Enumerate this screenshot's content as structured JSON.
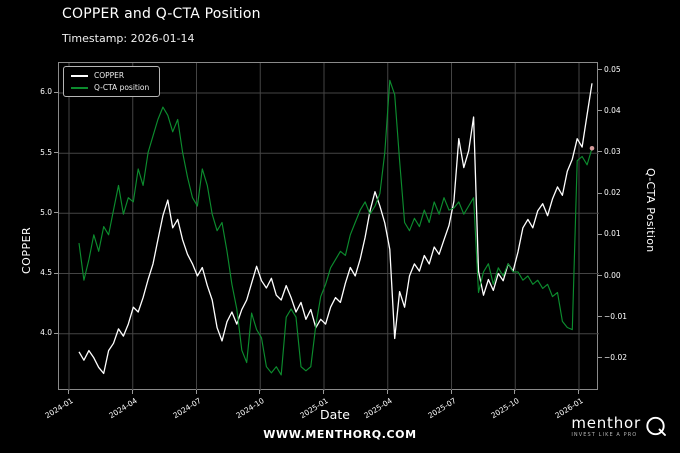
{
  "header": {
    "title": "COPPER and Q-CTA Position",
    "subtitle": "Timestamp: 2026-01-14"
  },
  "legend": {
    "items": [
      {
        "label": "COPPER",
        "color": "#ffffff"
      },
      {
        "label": "Q-CTA position",
        "color": "#0c8c2e"
      }
    ]
  },
  "axes": {
    "left": {
      "label": "COPPER",
      "ticks": [
        "6.0",
        "5.5",
        "5.0",
        "4.5",
        "4.0"
      ],
      "tick_values": [
        6.0,
        5.5,
        5.0,
        4.5,
        4.0
      ]
    },
    "right": {
      "label": "Q-CTA Position",
      "ticks": [
        "0.05",
        "0.04",
        "0.03",
        "0.02",
        "0.01",
        "0.00",
        "−0.01",
        "−0.02"
      ],
      "tick_values": [
        0.05,
        0.04,
        0.03,
        0.02,
        0.01,
        0.0,
        -0.01,
        -0.02
      ]
    },
    "x": {
      "label": "Date",
      "ticks": [
        "2024-01",
        "2024-04",
        "2024-07",
        "2024-10",
        "2025-01",
        "2025-04",
        "2025-07",
        "2025-10",
        "2026-01"
      ]
    }
  },
  "footer": {
    "website": "WWW.MENTHORQ.COM",
    "logo_name": "menthor",
    "logo_mark": "Q",
    "logo_tagline": "INVEST LIKE A PRO"
  },
  "chart_data": {
    "type": "line",
    "title": "COPPER and Q-CTA Position",
    "subtitle": "Timestamp: 2026-01-14",
    "xlabel": "Date",
    "x_range": [
      "2024-01",
      "2026-01-14"
    ],
    "x_tick_labels": [
      "2024-01",
      "2024-04",
      "2024-07",
      "2024-10",
      "2025-01",
      "2025-04",
      "2025-07",
      "2025-10",
      "2026-01"
    ],
    "grid": true,
    "background": "#000000",
    "grid_color": "#444444",
    "legend_position": "upper left",
    "left_axis": {
      "label": "COPPER",
      "range": [
        3.524,
        6.249
      ],
      "ticks": [
        6.0,
        5.5,
        5.0,
        4.5,
        4.0
      ]
    },
    "right_axis": {
      "label": "Q-CTA Position",
      "range": [
        -0.0279,
        0.0517
      ],
      "ticks": [
        0.05,
        0.04,
        0.03,
        0.02,
        0.01,
        0.0,
        -0.01,
        -0.02
      ]
    },
    "series": [
      {
        "name": "COPPER",
        "axis": "left",
        "color": "#ffffff",
        "values": [
          3.85,
          3.78,
          3.86,
          3.8,
          3.72,
          3.67,
          3.86,
          3.92,
          4.04,
          3.98,
          4.08,
          4.22,
          4.18,
          4.3,
          4.45,
          4.58,
          4.78,
          4.98,
          5.11,
          4.88,
          4.95,
          4.78,
          4.66,
          4.58,
          4.48,
          4.55,
          4.4,
          4.28,
          4.05,
          3.94,
          4.1,
          4.18,
          4.08,
          4.2,
          4.28,
          4.42,
          4.56,
          4.44,
          4.38,
          4.46,
          4.32,
          4.28,
          4.4,
          4.3,
          4.18,
          4.26,
          4.12,
          4.2,
          4.05,
          4.12,
          4.08,
          4.22,
          4.3,
          4.26,
          4.42,
          4.55,
          4.48,
          4.62,
          4.8,
          5.02,
          5.18,
          5.06,
          4.92,
          4.7,
          3.96,
          4.35,
          4.22,
          4.48,
          4.58,
          4.52,
          4.65,
          4.58,
          4.72,
          4.66,
          4.78,
          4.9,
          5.1,
          5.62,
          5.38,
          5.52,
          5.8,
          4.52,
          4.32,
          4.45,
          4.36,
          4.5,
          4.44,
          4.58,
          4.52,
          4.68,
          4.88,
          4.95,
          4.88,
          5.02,
          5.08,
          4.98,
          5.12,
          5.22,
          5.15,
          5.35,
          5.45,
          5.62,
          5.55,
          5.82,
          6.08
        ]
      },
      {
        "name": "Q-CTA position",
        "axis": "right",
        "color": "#0c8c2e",
        "values": [
          0.008,
          -0.001,
          0.004,
          0.01,
          0.006,
          0.012,
          0.01,
          0.016,
          0.022,
          0.015,
          0.019,
          0.018,
          0.026,
          0.022,
          0.03,
          0.034,
          0.038,
          0.041,
          0.039,
          0.035,
          0.038,
          0.03,
          0.024,
          0.019,
          0.017,
          0.026,
          0.022,
          0.015,
          0.011,
          0.013,
          0.006,
          -0.002,
          -0.008,
          -0.018,
          -0.021,
          -0.009,
          -0.013,
          -0.015,
          -0.022,
          -0.0235,
          -0.022,
          -0.024,
          -0.01,
          -0.008,
          -0.01,
          -0.022,
          -0.023,
          -0.022,
          -0.012,
          -0.005,
          -0.002,
          0.002,
          0.004,
          0.006,
          0.005,
          0.01,
          0.013,
          0.016,
          0.018,
          0.015,
          0.017,
          0.02,
          0.03,
          0.0475,
          0.044,
          0.028,
          0.013,
          0.011,
          0.014,
          0.012,
          0.016,
          0.013,
          0.018,
          0.015,
          0.019,
          0.016,
          0.0165,
          0.018,
          0.015,
          0.017,
          0.019,
          -0.004,
          0.001,
          0.003,
          -0.002,
          0.002,
          0.0,
          0.003,
          0.001,
          0.001,
          -0.001,
          0.0,
          -0.002,
          -0.001,
          -0.003,
          -0.002,
          -0.005,
          -0.004,
          -0.011,
          -0.0125,
          -0.013,
          0.028,
          0.029,
          0.027,
          0.031
        ],
        "end_marker": {
          "value": 0.031,
          "color": "#d49a9a"
        }
      }
    ]
  }
}
